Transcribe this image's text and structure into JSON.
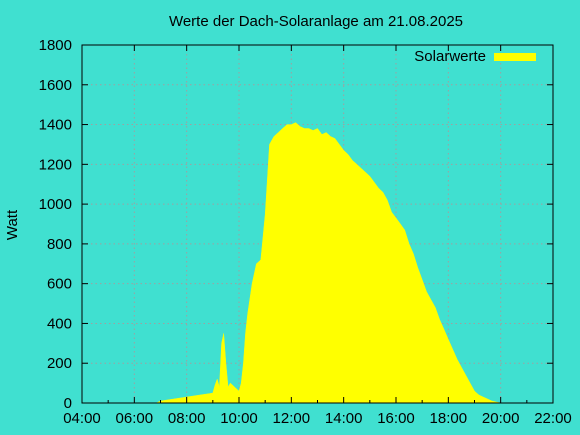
{
  "chart_data": {
    "type": "area",
    "title": "Werte der Dach-Solaranlage am 21.08.2025",
    "xlabel": "",
    "ylabel": "Watt",
    "xlim": [
      4,
      22
    ],
    "ylim": [
      0,
      1800
    ],
    "x_tick_labels": [
      "04:00",
      "06:00",
      "08:00",
      "10:00",
      "12:00",
      "14:00",
      "16:00",
      "18:00",
      "20:00",
      "22:00"
    ],
    "y_tick_labels": [
      "0",
      "200",
      "400",
      "600",
      "800",
      "1000",
      "1200",
      "1400",
      "1600",
      "1800"
    ],
    "grid": true,
    "legend": "top-right",
    "colors": {
      "background": "#40e0d0",
      "fill": "#ffff00",
      "grid": "#a0a0a0",
      "axis": "#000000"
    },
    "series": [
      {
        "name": "Solarwerte",
        "x": [
          "06:50",
          "07:00",
          "07:30",
          "08:00",
          "08:30",
          "09:00",
          "09:05",
          "09:10",
          "09:15",
          "09:20",
          "09:25",
          "09:30",
          "09:35",
          "09:40",
          "09:45",
          "09:50",
          "10:00",
          "10:05",
          "10:10",
          "10:15",
          "10:20",
          "10:30",
          "10:40",
          "10:50",
          "11:00",
          "11:10",
          "11:20",
          "11:30",
          "11:40",
          "11:50",
          "12:00",
          "12:10",
          "12:20",
          "12:30",
          "12:40",
          "12:50",
          "13:00",
          "13:10",
          "13:20",
          "13:30",
          "13:40",
          "13:50",
          "14:00",
          "14:10",
          "14:20",
          "14:30",
          "14:40",
          "14:50",
          "15:00",
          "15:10",
          "15:20",
          "15:30",
          "15:40",
          "15:50",
          "16:00",
          "16:10",
          "16:20",
          "16:30",
          "16:40",
          "16:50",
          "17:00",
          "17:10",
          "17:20",
          "17:30",
          "17:40",
          "17:50",
          "18:00",
          "18:10",
          "18:20",
          "18:30",
          "18:40",
          "18:50",
          "19:00",
          "19:10",
          "19:20",
          "19:30",
          "19:40",
          "19:50",
          "20:00"
        ],
        "values": [
          0,
          10,
          20,
          30,
          40,
          50,
          90,
          120,
          80,
          300,
          350,
          200,
          80,
          100,
          90,
          80,
          60,
          100,
          200,
          350,
          450,
          600,
          700,
          720,
          950,
          1300,
          1340,
          1360,
          1380,
          1400,
          1400,
          1410,
          1390,
          1380,
          1380,
          1370,
          1380,
          1350,
          1360,
          1340,
          1330,
          1300,
          1270,
          1250,
          1220,
          1200,
          1180,
          1160,
          1140,
          1110,
          1080,
          1060,
          1020,
          960,
          930,
          900,
          870,
          800,
          750,
          680,
          620,
          560,
          520,
          480,
          420,
          370,
          320,
          270,
          220,
          180,
          140,
          100,
          60,
          40,
          30,
          20,
          10,
          5,
          0
        ]
      }
    ]
  }
}
